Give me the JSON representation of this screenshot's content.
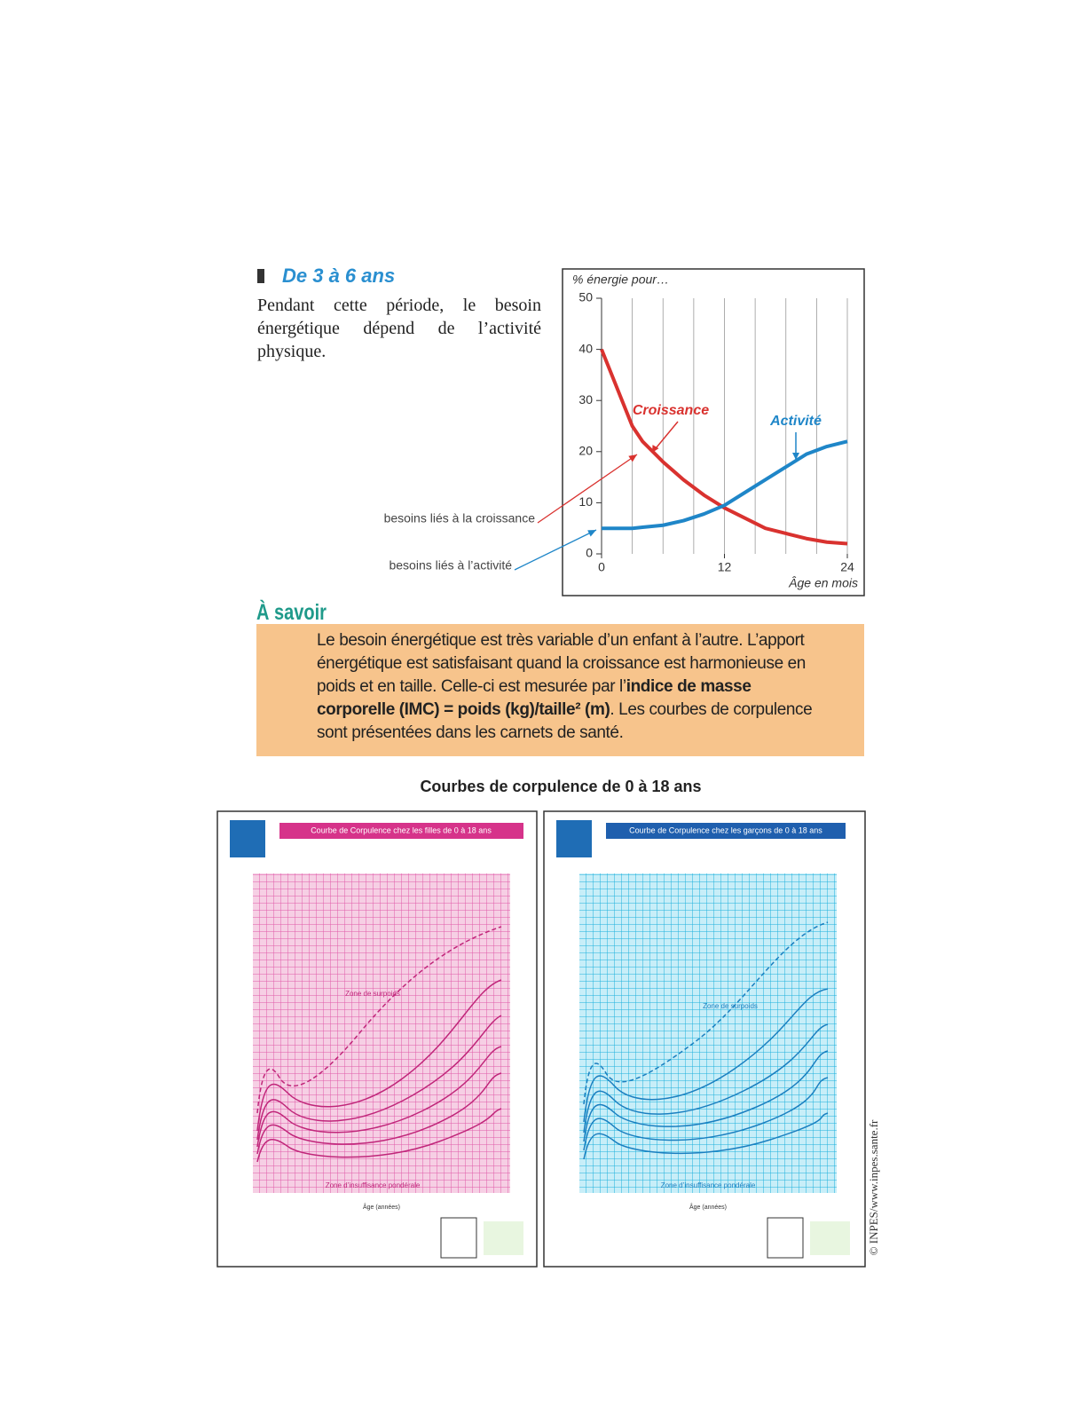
{
  "section": {
    "title": "De 3 à 6 ans",
    "text": "Pendant cette période, le besoin énergétique dépend de l’activité physique."
  },
  "chart_data": {
    "type": "line",
    "y_label": "% énergie pour…",
    "x_label": "Âge en mois",
    "x": [
      0,
      1,
      2,
      3,
      4,
      6,
      8,
      10,
      12,
      14,
      16,
      18,
      20,
      22,
      24
    ],
    "series": [
      {
        "name": "Croissance",
        "color": "#d9322f",
        "values": [
          40,
          35,
          30,
          25,
          22,
          18,
          14.5,
          11.5,
          9,
          7,
          5,
          4,
          3,
          2.3,
          2
        ]
      },
      {
        "name": "Activité",
        "color": "#1f86c8",
        "values": [
          5,
          5,
          5,
          5,
          5.2,
          5.6,
          6.5,
          7.8,
          9.5,
          12,
          14.5,
          17,
          19.5,
          21,
          22
        ]
      }
    ],
    "xlim": [
      0,
      24
    ],
    "ylim": [
      0,
      50
    ],
    "xticks": [
      0,
      12,
      24
    ],
    "yticks": [
      0,
      10,
      20,
      30,
      40,
      50
    ],
    "xgrid": [
      3,
      6,
      9,
      12,
      15,
      18,
      21,
      24
    ],
    "annotations": [
      "besoins liés à la croissance",
      "besoins liés à l’activité"
    ]
  },
  "savoir": {
    "title": "À savoir",
    "text": [
      "Le besoin énergétique est très variable d’un enfant à l’autre. L’apport énergétique est satisfaisant quand la croissance est harmonieuse en poids et en taille. Celle-ci est mesurée par l’",
      "indice de masse corporelle (IMC) = poids (kg)/taille² (m)",
      ". Les courbes de corpulence sont présentées dans les carnets de santé."
    ]
  },
  "corpulence": {
    "title": "Courbes de corpulence de 0 à 18 ans",
    "panels": [
      {
        "title": "Courbe de Corpulence chez les filles de 0 à 18 ans",
        "zone_top": "Zone de surpoids",
        "zone_bottom": "Zone d’insuffisance pondérale",
        "x_label": "Âge (années)"
      },
      {
        "title": "Courbe de Corpulence chez les garçons de 0 à 18 ans",
        "zone_top": "Zone de surpoids",
        "zone_bottom": "Zone d’insuffisance pondérale",
        "x_label": "Âge (années)"
      }
    ]
  },
  "credit": "© INPES/www.inpes.sante.fr"
}
